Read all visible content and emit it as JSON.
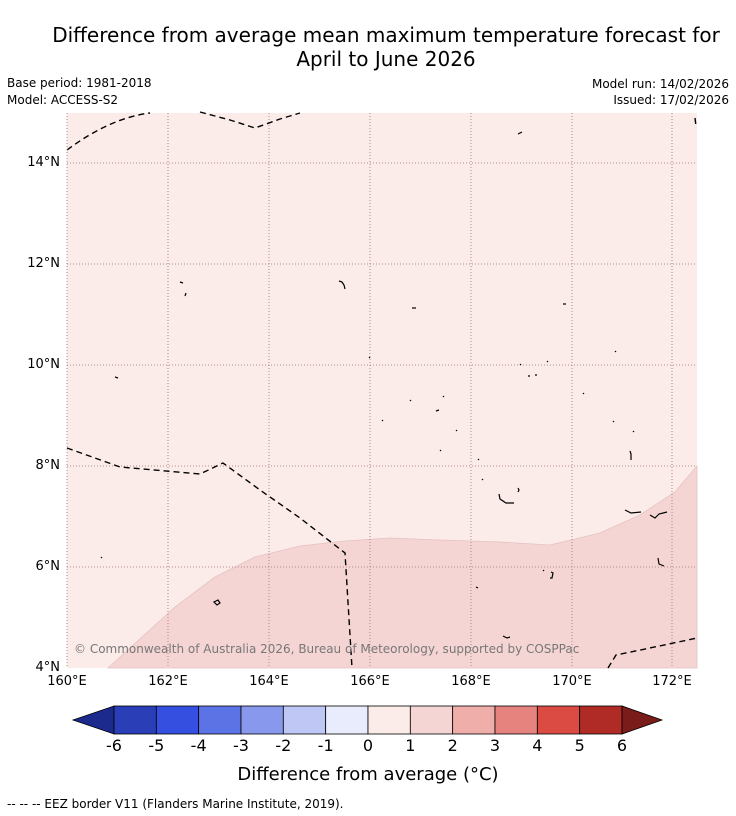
{
  "title_line1": "Difference from average mean maximum temperature forecast for",
  "title_line2": "April to June 2026",
  "base_period": "Base period: 1981-2018",
  "model": "Model: ACCESS-S2",
  "model_run": "Model run: 14/02/2026",
  "issued": "Issued: 17/02/2026",
  "lat_labels": [
    "14°N",
    "12°N",
    "10°N",
    "8°N",
    "6°N",
    "4°N"
  ],
  "lon_labels": [
    "160°E",
    "162°E",
    "164°E",
    "166°E",
    "168°E",
    "170°E",
    "172°E"
  ],
  "copyright": "© Commonwealth of Australia 2026, Bureau of Meteorology, supported by COSPPac",
  "colorbar": {
    "ticks": [
      "-6",
      "-5",
      "-4",
      "-3",
      "-2",
      "-1",
      "0",
      "1",
      "2",
      "3",
      "4",
      "5",
      "6"
    ],
    "colors": [
      "#1b2a8c",
      "#2a3eb8",
      "#3550e0",
      "#5c73e6",
      "#8898ec",
      "#bfc7f5",
      "#e8ecfc",
      "#fbecea",
      "#f5d5d4",
      "#efaeaa",
      "#e7837e",
      "#db4b43",
      "#b02b25",
      "#7a1d1a"
    ],
    "title": "Difference from average (°C)"
  },
  "map_fill_colors": {
    "band_0_1": "#fbebe9",
    "band_1_2": "#f5d5d4"
  },
  "footnote": "-- -- -- EEZ border V11 (Flanders Marine Institute, 2019)."
}
